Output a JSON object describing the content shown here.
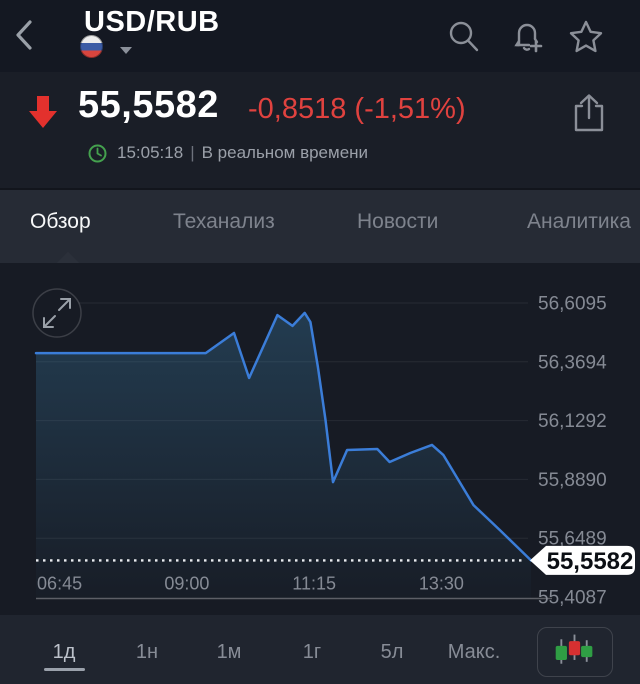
{
  "header": {
    "back_icon": "chevron-left",
    "title": "USD/RUB",
    "flag_icon": "russian-flag",
    "dropdown_icon": "caret-down",
    "action_icons": [
      "search",
      "alert-add",
      "star"
    ]
  },
  "quote": {
    "direction_icon": "arrow-down",
    "direction": "down",
    "price": "55,5582",
    "change": "-0,8518 (-1,51%)",
    "clock_icon": "clock",
    "timestamp": "15:05:18",
    "divider": "|",
    "realtime_label": "В реальном времени",
    "share_icon": "share"
  },
  "tabs": [
    {
      "label": "Обзор",
      "active": true
    },
    {
      "label": "Теханализ",
      "active": false
    },
    {
      "label": "Новости",
      "active": false
    },
    {
      "label": "Аналитика",
      "active": false
    }
  ],
  "chart_data": {
    "type": "line",
    "title": "USD/RUB intraday price",
    "series": [
      {
        "name": "USD/RUB",
        "points": [
          [
            "06:20",
            56.405
          ],
          [
            "09:20",
            56.405
          ],
          [
            "09:50",
            56.487
          ],
          [
            "10:06",
            56.303
          ],
          [
            "10:36",
            56.56
          ],
          [
            "10:52",
            56.516
          ],
          [
            "11:05",
            56.569
          ],
          [
            "11:11",
            56.532
          ],
          [
            "11:19",
            56.348
          ],
          [
            "11:27",
            56.132
          ],
          [
            "11:35",
            55.878
          ],
          [
            "11:50",
            56.009
          ],
          [
            "12:22",
            56.013
          ],
          [
            "12:35",
            55.96
          ],
          [
            "12:57",
            55.997
          ],
          [
            "13:20",
            56.03
          ],
          [
            "13:32",
            55.989
          ],
          [
            "14:04",
            55.784
          ],
          [
            "14:32",
            55.682
          ],
          [
            "15:05",
            55.558
          ]
        ]
      }
    ],
    "x_tick_labels": [
      "06:45",
      "09:00",
      "11:15",
      "13:30"
    ],
    "x_range": [
      "06:20",
      "15:05"
    ],
    "y_tick_labels": [
      "56,6095",
      "56,3694",
      "56,1292",
      "55,8890",
      "55,6489",
      "55,4087"
    ],
    "y_tick_values": [
      56.6095,
      56.3694,
      56.1292,
      55.889,
      55.6489,
      55.4087
    ],
    "ylim": [
      55.4087,
      56.6095
    ],
    "grid": true,
    "legend": false,
    "line_color": "#3b7dd8",
    "area_fill_color": "#3f89b8",
    "last_price_value": 55.5582,
    "last_price_label": "55,5582",
    "expand_icon": "expand-arrows"
  },
  "timeframes": [
    {
      "label": "1д",
      "active": true
    },
    {
      "label": "1н",
      "active": false
    },
    {
      "label": "1м",
      "active": false
    },
    {
      "label": "1г",
      "active": false
    },
    {
      "label": "5л",
      "active": false
    },
    {
      "label": "Макс.",
      "active": false
    }
  ],
  "chart_type_button": {
    "icon": "candlestick-icon"
  },
  "colors": {
    "negative_red": "#e0423f",
    "arrow_red": "#e3312d",
    "line_blue": "#3b7dd8",
    "clock_green": "#44a14e",
    "badge_bg": "#ffffff",
    "badge_text": "#0c0f14",
    "candle_green": "#2f9e44",
    "candle_red": "#d63031"
  }
}
